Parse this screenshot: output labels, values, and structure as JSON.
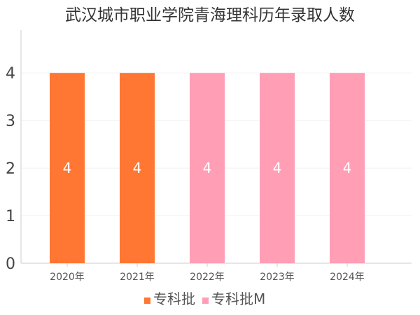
{
  "chart_data": {
    "type": "bar",
    "title": "武汉城市职业学院青海理科历年录取人数",
    "xlabel": "",
    "ylabel": "",
    "categories": [
      "2020年",
      "2021年",
      "2022年",
      "2023年",
      "2024年"
    ],
    "values": [
      4,
      4,
      4,
      4,
      4
    ],
    "batch": [
      "专科批",
      "专科批",
      "专科批M",
      "专科批M",
      "专科批M"
    ],
    "ylim": [
      0,
      4.9
    ],
    "yticks": [
      0,
      1,
      2,
      3,
      4
    ],
    "grid": true,
    "legend_position": "bottom-center",
    "legend": [
      {
        "name": "专科批",
        "color": "#FF7733"
      },
      {
        "name": "专科批M",
        "color": "#FF9EB5"
      }
    ]
  }
}
